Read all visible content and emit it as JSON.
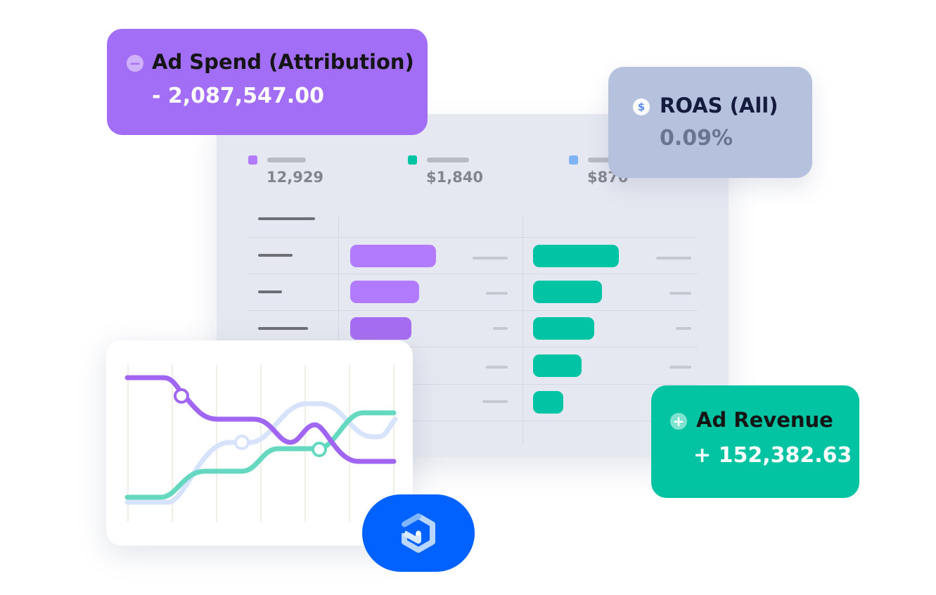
{
  "colors": {
    "purple": "#a36ef6",
    "green": "#02c3a2",
    "blue_grey": "#b6c1de",
    "brand_blue": "#0162ff"
  },
  "legend": [
    {
      "value": "12,929",
      "color": "#b27bfd"
    },
    {
      "value": "$1,840",
      "color": "#01c4a4"
    },
    {
      "value": "$870",
      "color": "#7fb3f7"
    }
  ],
  "table": {
    "purple_bar_fractions": [
      1.0,
      0.8,
      0.71
    ],
    "green_bar_fractions": [
      1.0,
      0.8,
      0.71,
      0.56,
      0.35
    ]
  },
  "ad_spend": {
    "icon": "minus-circle-icon",
    "title": "Ad Spend (Attribution)",
    "value": "- 2,087,547.00"
  },
  "roas": {
    "icon": "dollar-circle-icon",
    "title": "ROAS (All)",
    "value": "0.09%"
  },
  "ad_revenue": {
    "icon": "plus-circle-icon",
    "title": "Ad Revenue",
    "value": "+ 152,382.63"
  },
  "line_chart": {
    "series": [
      {
        "color": "#a066f1"
      },
      {
        "color": "#d7e3fb"
      },
      {
        "color": "#64d9c0"
      }
    ]
  },
  "logo": {
    "icon": "brand-logo-icon"
  }
}
